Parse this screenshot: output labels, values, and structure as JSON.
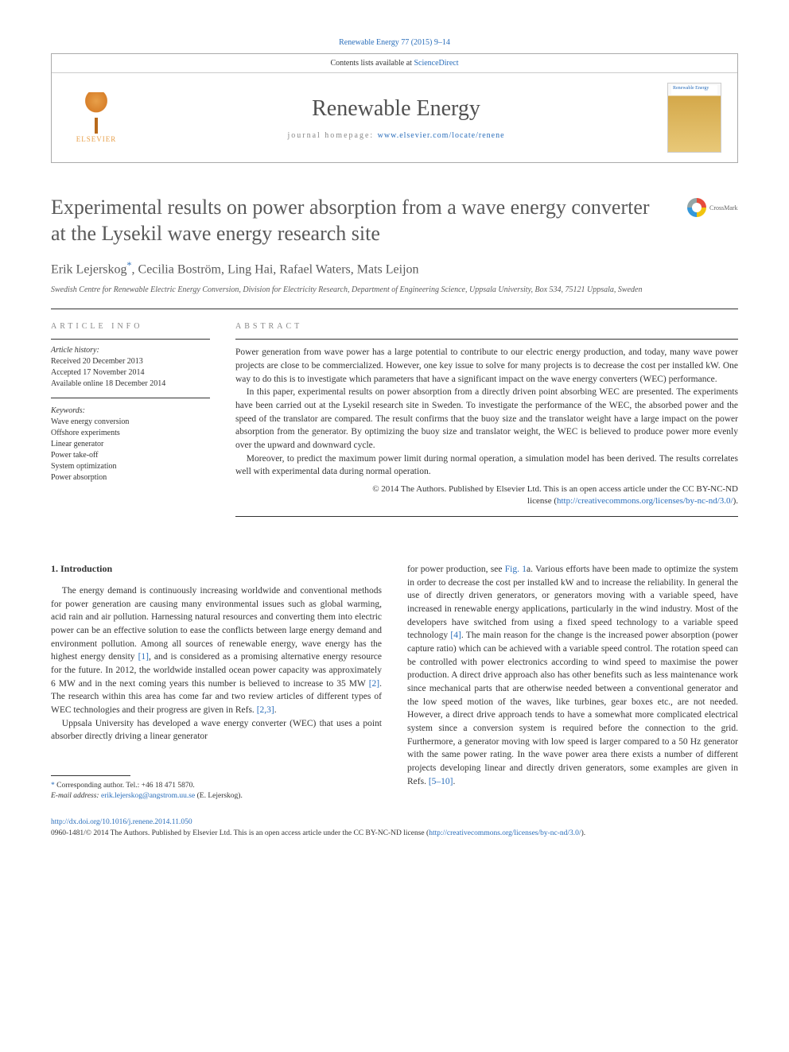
{
  "journal_ref": "Renewable Energy 77 (2015) 9–14",
  "header": {
    "contents_prefix": "Contents lists available at ",
    "contents_link": "ScienceDirect",
    "journal_name": "Renewable Energy",
    "homepage_prefix": "journal homepage: ",
    "homepage_url": "www.elsevier.com/locate/renene",
    "publisher": "ELSEVIER",
    "cover_title": "Renewable Energy"
  },
  "crossmark_label": "CrossMark",
  "title": "Experimental results on power absorption from a wave energy converter at the Lysekil wave energy research site",
  "authors": "Erik Lejerskog",
  "authors_rest": ", Cecilia Boström, Ling Hai, Rafael Waters, Mats Leijon",
  "corr_mark": "*",
  "affiliation": "Swedish Centre for Renewable Electric Energy Conversion, Division for Electricity Research, Department of Engineering Science, Uppsala University, Box 534, 75121 Uppsala, Sweden",
  "info": {
    "heading": "ARTICLE INFO",
    "history_label": "Article history:",
    "received": "Received 20 December 2013",
    "accepted": "Accepted 17 November 2014",
    "online": "Available online 18 December 2014",
    "keywords_label": "Keywords:",
    "keywords": [
      "Wave energy conversion",
      "Offshore experiments",
      "Linear generator",
      "Power take-off",
      "System optimization",
      "Power absorption"
    ]
  },
  "abstract": {
    "heading": "ABSTRACT",
    "p1": "Power generation from wave power has a large potential to contribute to our electric energy production, and today, many wave power projects are close to be commercialized. However, one key issue to solve for many projects is to decrease the cost per installed kW. One way to do this is to investigate which parameters that have a significant impact on the wave energy converters (WEC) performance.",
    "p2": "In this paper, experimental results on power absorption from a directly driven point absorbing WEC are presented. The experiments have been carried out at the Lysekil research site in Sweden. To investigate the performance of the WEC, the absorbed power and the speed of the translator are compared. The result confirms that the buoy size and the translator weight have a large impact on the power absorption from the generator. By optimizing the buoy size and translator weight, the WEC is believed to produce power more evenly over the upward and downward cycle.",
    "p3": "Moreover, to predict the maximum power limit during normal operation, a simulation model has been derived. The results correlates well with experimental data during normal operation.",
    "copyright_line1": "© 2014 The Authors. Published by Elsevier Ltd. This is an open access article under the CC BY-NC-ND",
    "copyright_line2_prefix": "license (",
    "copyright_link": "http://creativecommons.org/licenses/by-nc-nd/3.0/",
    "copyright_line2_suffix": ")."
  },
  "body": {
    "section_num": "1.",
    "section_title": "Introduction",
    "col1_p1a": "The energy demand is continuously increasing worldwide and conventional methods for power generation are causing many environmental issues such as global warming, acid rain and air pollution. Harnessing natural resources and converting them into electric power can be an effective solution to ease the conflicts between large energy demand and environment pollution. Among all sources of renewable energy, wave energy has the highest energy density ",
    "ref1": "[1]",
    "col1_p1b": ", and is considered as a promising alternative energy resource for the future. In 2012, the worldwide installed ocean power capacity was approximately 6 MW and in the next coming years this number is believed to increase to 35 MW ",
    "ref2": "[2]",
    "col1_p1c": ". The research within this area has come far and two review articles of different types of WEC technologies and their progress are given in Refs. ",
    "ref23": "[2,3]",
    "col1_p1d": ".",
    "col1_p2": "Uppsala University has developed a wave energy converter (WEC) that uses a point absorber directly driving a linear generator",
    "col2_p1a": "for power production, see ",
    "fig1": "Fig. 1",
    "col2_p1b": "a. Various efforts have been made to optimize the system in order to decrease the cost per installed kW and to increase the reliability. In general the use of directly driven generators, or generators moving with a variable speed, have increased in renewable energy applications, particularly in the wind industry. Most of the developers have switched from using a fixed speed technology to a variable speed technology ",
    "ref4": "[4]",
    "col2_p1c": ". The main reason for the change is the increased power absorption (power capture ratio) which can be achieved with a variable speed control. The rotation speed can be controlled with power electronics according to wind speed to maximise the power production. A direct drive approach also has other benefits such as less maintenance work since mechanical parts that are otherwise needed between a conventional generator and the low speed motion of the waves, like turbines, gear boxes etc., are not needed. However, a direct drive approach tends to have a somewhat more complicated electrical system since a conversion system is required before the connection to the grid. Furthermore, a generator moving with low speed is larger compared to a 50 Hz generator with the same power rating. In the wave power area there exists a number of different projects developing linear and directly driven generators, some examples are given in Refs. ",
    "ref510": "[5–10]",
    "col2_p1d": "."
  },
  "footnote": {
    "corr_label": "Corresponding author. Tel.: +46 18 471 5870.",
    "email_label": "E-mail address: ",
    "email": "erik.lejerskog@angstrom.uu.se",
    "email_suffix": " (E. Lejerskog)."
  },
  "footer": {
    "doi": "http://dx.doi.org/10.1016/j.renene.2014.11.050",
    "issn_line": "0960-1481/© 2014 The Authors. Published by Elsevier Ltd. This is an open access article under the CC BY-NC-ND license (",
    "license_link": "http://creativecommons.org/licenses/by-nc-nd/3.0/",
    "issn_suffix": ")."
  }
}
